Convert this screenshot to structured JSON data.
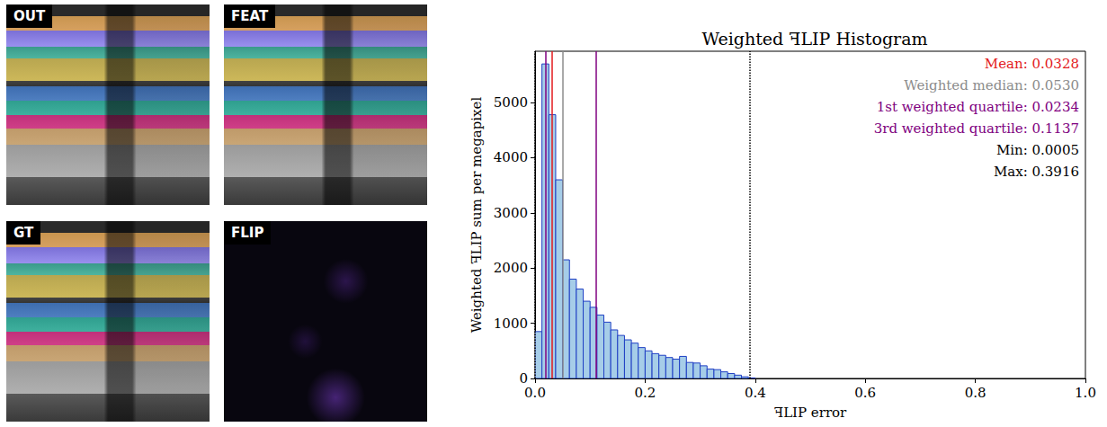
{
  "panels": [
    {
      "label": "OUT"
    },
    {
      "label": "FEAT"
    },
    {
      "label": "GT"
    },
    {
      "label": "FLIP"
    }
  ],
  "chart_data": {
    "type": "histogram",
    "title": "Weighted ꟻLIP Histogram",
    "x_label": "ꟻLIP error",
    "y_label": "Weighted ꟻLIP sum per megapixel",
    "bins": [
      0,
      0.0125,
      0.025,
      0.0375,
      0.05,
      0.0625,
      0.075,
      0.0875,
      0.1,
      0.1125,
      0.125,
      0.1375,
      0.15,
      0.1625,
      0.175,
      0.1875,
      0.2,
      0.2125,
      0.225,
      0.2375,
      0.25,
      0.2625,
      0.275,
      0.2875,
      0.3,
      0.3125,
      0.325,
      0.3375,
      0.35,
      0.3625,
      0.375,
      0.3875,
      0.4
    ],
    "values": [
      850,
      5700,
      4780,
      3600,
      2150,
      1800,
      1620,
      1400,
      1290,
      1150,
      1020,
      880,
      780,
      700,
      640,
      560,
      500,
      450,
      420,
      380,
      350,
      400,
      290,
      280,
      230,
      170,
      160,
      120,
      90,
      60,
      30,
      10
    ],
    "color": "#a6cde8",
    "xlim": [
      0,
      1
    ],
    "xticks": [
      {
        "value": 0,
        "label": "0.0"
      },
      {
        "value": 0.2,
        "label": "0.2"
      },
      {
        "value": 0.4,
        "label": "0.4"
      },
      {
        "value": 0.6,
        "label": "0.6"
      },
      {
        "value": 0.8,
        "label": "0.8"
      },
      {
        "value": 1,
        "label": "1.0"
      }
    ],
    "ylim": [
      0,
      5930
    ],
    "yticks": [
      0,
      1000,
      2000,
      3000,
      4000,
      5000
    ],
    "grid": false,
    "markers": [
      {
        "text": "Mean: 0.0328",
        "value": 0.0328,
        "color": "#e31a1c",
        "line_style": "solid"
      },
      {
        "text": "Weighted median: 0.0530",
        "value": 0.053,
        "color": "#8c8c8c",
        "line_style": "solid"
      },
      {
        "text": "1st weighted quartile: 0.0234",
        "value": 0.0234,
        "color": "#800080",
        "line_style": "solid"
      },
      {
        "text": "3rd weighted quartile: 0.1137",
        "value": 0.1137,
        "color": "#800080",
        "line_style": "solid"
      },
      {
        "text": "Min: 0.0005",
        "value": 0.0005,
        "color": "#000000",
        "line_style": "dotted"
      },
      {
        "text": "Max: 0.3916",
        "value": 0.3916,
        "color": "#000000",
        "line_style": "dotted"
      }
    ]
  }
}
